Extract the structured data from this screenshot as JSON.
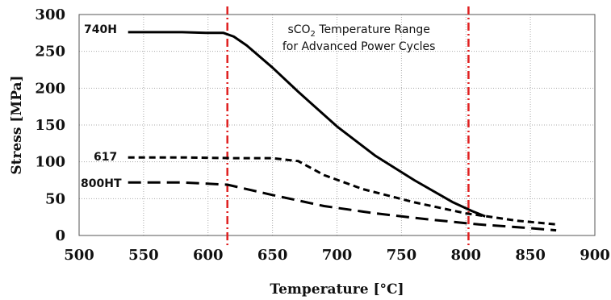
{
  "chart_data": {
    "type": "line",
    "xlabel": "Temperature [°C]",
    "ylabel": "Stress [MPa]",
    "xlim": [
      500,
      900
    ],
    "ylim": [
      0,
      300
    ],
    "xticks": [
      500,
      550,
      600,
      650,
      700,
      750,
      800,
      850,
      900
    ],
    "yticks": [
      0,
      50,
      100,
      150,
      200,
      250,
      300
    ],
    "grid": true,
    "series": [
      {
        "name": "740H",
        "line_style": "solid",
        "color": "#000000",
        "x": [
          538,
          560,
          580,
          600,
          612,
          620,
          630,
          650,
          670,
          700,
          730,
          760,
          790,
          805,
          815
        ],
        "y": [
          276,
          276,
          276,
          275,
          275,
          270,
          258,
          228,
          195,
          148,
          108,
          75,
          45,
          33,
          26
        ]
      },
      {
        "name": "617",
        "line_style": "dashed",
        "color": "#000000",
        "x": [
          538,
          580,
          620,
          650,
          670,
          690,
          720,
          760,
          800,
          840,
          870
        ],
        "y": [
          106,
          106,
          105,
          105,
          101,
          82,
          63,
          45,
          30,
          20,
          15
        ]
      },
      {
        "name": "800HT",
        "line_style": "long-dashed",
        "color": "#000000",
        "x": [
          538,
          580,
          615,
          650,
          690,
          730,
          770,
          810,
          850,
          870
        ],
        "y": [
          72,
          72,
          69,
          55,
          40,
          30,
          22,
          15,
          10,
          7
        ]
      }
    ],
    "reference_lines": {
      "x": [
        615,
        802
      ],
      "color": "#e02020",
      "style": "dash-dot"
    },
    "annotation": {
      "line1_prefix": "sCO",
      "line1_sub": "2",
      "line1_suffix": " Temperature Range",
      "line2": "for Advanced Power Cycles",
      "x": 717
    }
  }
}
